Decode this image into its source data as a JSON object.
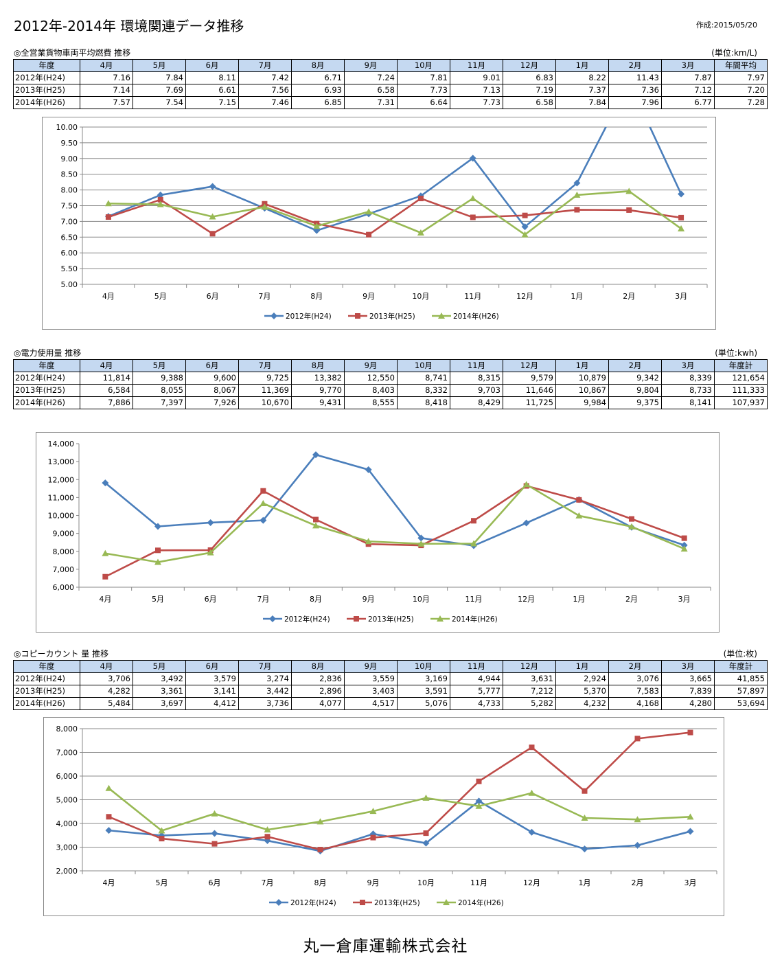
{
  "page": {
    "title": "2012年-2014年 環境関連データ推移",
    "created": "作成:2015/05/20",
    "company": "丸一倉庫運輸株式会社"
  },
  "months": [
    "4月",
    "5月",
    "6月",
    "7月",
    "8月",
    "9月",
    "10月",
    "11月",
    "12月",
    "1月",
    "2月",
    "3月"
  ],
  "colors": {
    "s2012": "#4a7ebb",
    "s2013": "#be4b48",
    "s2014": "#98b954",
    "header_bg": "#c5d9f1"
  },
  "sections": [
    {
      "id": "fuel",
      "title": "◎全営業貨物車両平均燃費 推移",
      "unit": "(単位:km/L)",
      "header_label": "年度",
      "total_label": "年間平均",
      "rows": [
        {
          "label": "2012年(H24)",
          "values": [
            "7.16",
            "7.84",
            "8.11",
            "7.42",
            "6.71",
            "7.24",
            "7.81",
            "9.01",
            "6.83",
            "8.22",
            "11.43",
            "7.87"
          ],
          "total": "7.97"
        },
        {
          "label": "2013年(H25)",
          "values": [
            "7.14",
            "7.69",
            "6.61",
            "7.56",
            "6.93",
            "6.58",
            "7.73",
            "7.13",
            "7.19",
            "7.37",
            "7.36",
            "7.12"
          ],
          "total": "7.20"
        },
        {
          "label": "2014年(H26)",
          "values": [
            "7.57",
            "7.54",
            "7.15",
            "7.46",
            "6.85",
            "7.31",
            "6.64",
            "7.73",
            "6.58",
            "7.84",
            "7.96",
            "6.77"
          ],
          "total": "7.28"
        }
      ]
    },
    {
      "id": "power",
      "title": "◎電力使用量 推移",
      "unit": "(単位:kwh)",
      "header_label": "年度",
      "total_label": "年度計",
      "rows": [
        {
          "label": "2012年(H24)",
          "values": [
            "11,814",
            "9,388",
            "9,600",
            "9,725",
            "13,382",
            "12,550",
            "8,741",
            "8,315",
            "9,579",
            "10,879",
            "9,342",
            "8,339"
          ],
          "total": "121,654"
        },
        {
          "label": "2013年(H25)",
          "values": [
            "6,584",
            "8,055",
            "8,067",
            "11,369",
            "9,770",
            "8,403",
            "8,332",
            "9,703",
            "11,646",
            "10,867",
            "9,804",
            "8,733"
          ],
          "total": "111,333"
        },
        {
          "label": "2014年(H26)",
          "values": [
            "7,886",
            "7,397",
            "7,926",
            "10,670",
            "9,431",
            "8,555",
            "8,418",
            "8,429",
            "11,725",
            "9,984",
            "9,375",
            "8,141"
          ],
          "total": "107,937"
        }
      ]
    },
    {
      "id": "copy",
      "title": "◎コピーカウント 量 推移",
      "unit": "(単位:枚)",
      "header_label": "年度",
      "total_label": "年度計",
      "rows": [
        {
          "label": "2012年(H24)",
          "values": [
            "3,706",
            "3,492",
            "3,579",
            "3,274",
            "2,836",
            "3,559",
            "3,169",
            "4,944",
            "3,631",
            "2,924",
            "3,076",
            "3,665"
          ],
          "total": "41,855"
        },
        {
          "label": "2013年(H25)",
          "values": [
            "4,282",
            "3,361",
            "3,141",
            "3,442",
            "2,896",
            "3,403",
            "3,591",
            "5,777",
            "7,212",
            "5,370",
            "7,583",
            "7,839"
          ],
          "total": "57,897"
        },
        {
          "label": "2014年(H26)",
          "values": [
            "5,484",
            "3,697",
            "4,412",
            "3,736",
            "4,077",
            "4,517",
            "5,076",
            "4,733",
            "5,282",
            "4,232",
            "4,168",
            "4,280"
          ],
          "total": "53,694"
        }
      ]
    }
  ],
  "chart_data": [
    {
      "type": "line",
      "categories": [
        "4月",
        "5月",
        "6月",
        "7月",
        "8月",
        "9月",
        "10月",
        "11月",
        "12月",
        "1月",
        "2月",
        "3月"
      ],
      "ylim": [
        5,
        10
      ],
      "ystep": 0.5,
      "ydecimals": 2,
      "grid": true,
      "legend": "bottom",
      "series": [
        {
          "name": "2012年(H24)",
          "marker": "diamond",
          "values": [
            7.16,
            7.84,
            8.11,
            7.42,
            6.71,
            7.24,
            7.81,
            9.01,
            6.83,
            8.22,
            11.43,
            7.87
          ]
        },
        {
          "name": "2013年(H25)",
          "marker": "square",
          "values": [
            7.14,
            7.69,
            6.61,
            7.56,
            6.93,
            6.58,
            7.73,
            7.13,
            7.19,
            7.37,
            7.36,
            7.12
          ]
        },
        {
          "name": "2014年(H26)",
          "marker": "triangle",
          "values": [
            7.57,
            7.54,
            7.15,
            7.46,
            6.85,
            7.31,
            6.64,
            7.73,
            6.58,
            7.84,
            7.96,
            6.77
          ]
        }
      ]
    },
    {
      "type": "line",
      "categories": [
        "4月",
        "5月",
        "6月",
        "7月",
        "8月",
        "9月",
        "10月",
        "11月",
        "12月",
        "1月",
        "2月",
        "3月"
      ],
      "ylim": [
        6000,
        14000
      ],
      "ystep": 1000,
      "ydecimals": 0,
      "grid": false,
      "legend": "bottom",
      "series": [
        {
          "name": "2012年(H24)",
          "marker": "diamond",
          "values": [
            11814,
            9388,
            9600,
            9725,
            13382,
            12550,
            8741,
            8315,
            9579,
            10879,
            9342,
            8339
          ]
        },
        {
          "name": "2013年(H25)",
          "marker": "square",
          "values": [
            6584,
            8055,
            8067,
            11369,
            9770,
            8403,
            8332,
            9703,
            11646,
            10867,
            9804,
            8733
          ]
        },
        {
          "name": "2014年(H26)",
          "marker": "triangle",
          "values": [
            7886,
            7397,
            7926,
            10670,
            9431,
            8555,
            8418,
            8429,
            11725,
            9984,
            9375,
            8141
          ]
        }
      ]
    },
    {
      "type": "line",
      "categories": [
        "4月",
        "5月",
        "6月",
        "7月",
        "8月",
        "9月",
        "10月",
        "11月",
        "12月",
        "1月",
        "2月",
        "3月"
      ],
      "ylim": [
        2000,
        8000
      ],
      "ystep": 1000,
      "ydecimals": 0,
      "grid": true,
      "legend": "bottom",
      "series": [
        {
          "name": "2012年(H24)",
          "marker": "diamond",
          "values": [
            3706,
            3492,
            3579,
            3274,
            2836,
            3559,
            3169,
            4944,
            3631,
            2924,
            3076,
            3665
          ]
        },
        {
          "name": "2013年(H25)",
          "marker": "square",
          "values": [
            4282,
            3361,
            3141,
            3442,
            2896,
            3403,
            3591,
            5777,
            7212,
            5370,
            7583,
            7839
          ]
        },
        {
          "name": "2014年(H26)",
          "marker": "triangle",
          "values": [
            5484,
            3697,
            4412,
            3736,
            4077,
            4517,
            5076,
            4733,
            5282,
            4232,
            4168,
            4280
          ]
        }
      ]
    }
  ]
}
